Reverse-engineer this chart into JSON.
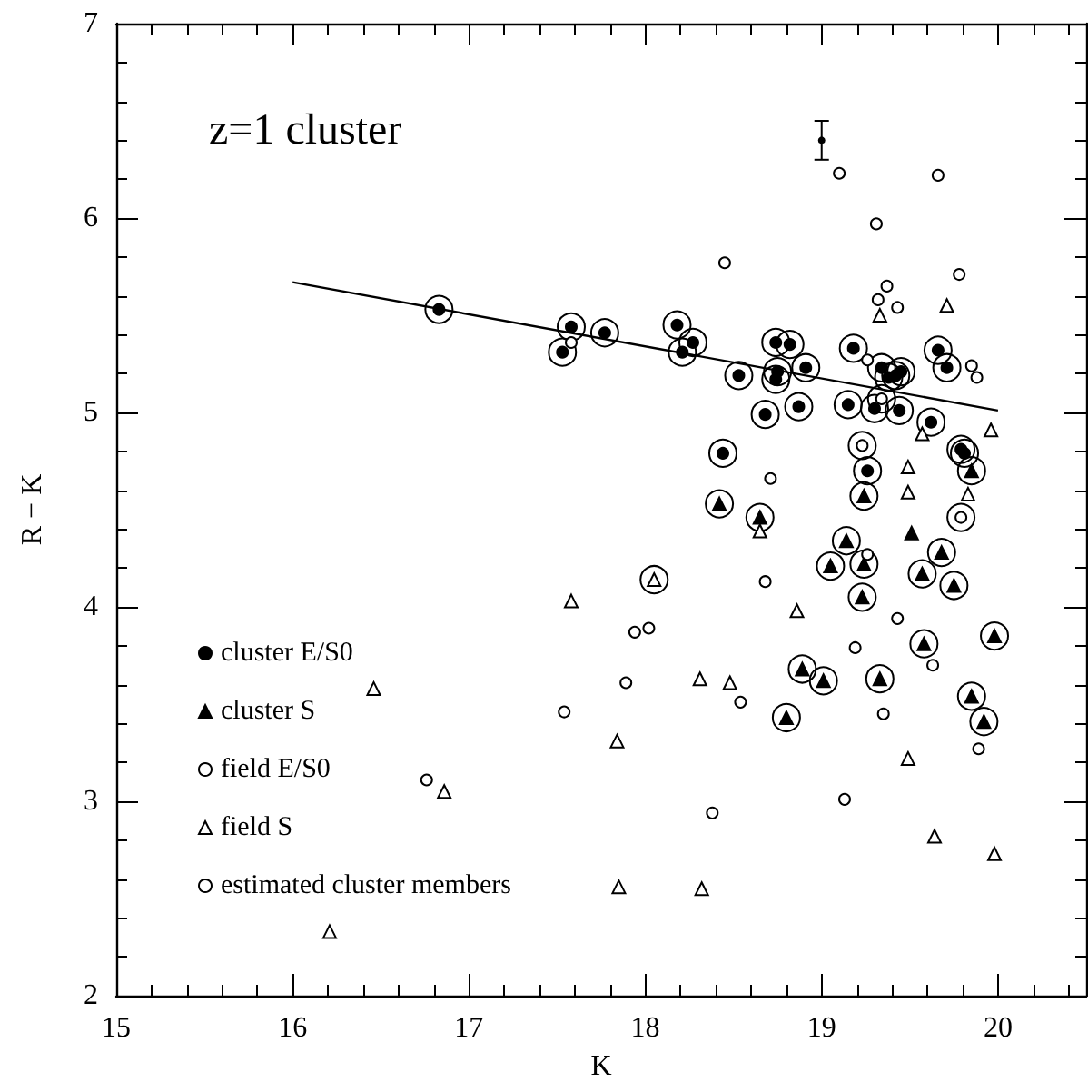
{
  "chart_data": {
    "type": "scatter",
    "title": "z=1 cluster",
    "xlabel": "K",
    "ylabel": "R − K",
    "xlim": [
      15,
      20.5
    ],
    "ylim": [
      2,
      7
    ],
    "xticks": [
      15,
      16,
      17,
      18,
      19,
      20
    ],
    "yticks": [
      2,
      3,
      4,
      5,
      6,
      7
    ],
    "grid": false,
    "legend": "left",
    "series": [
      {
        "name": "estimated cluster members",
        "type": "bubble",
        "marker": "circle",
        "color": "#000000",
        "sizes": [
          1,
          1,
          1,
          1,
          1,
          1,
          1,
          1,
          1,
          1,
          1,
          1,
          1,
          1,
          1,
          1,
          1,
          1,
          1,
          1,
          1,
          1,
          1,
          1,
          1,
          1,
          1,
          1,
          1,
          1,
          1,
          1,
          1,
          1,
          1,
          1,
          1,
          1,
          1,
          1,
          1,
          1,
          1,
          1,
          1,
          1,
          1,
          1,
          1,
          1,
          1,
          1,
          1
        ],
        "x": [
          16.83,
          17.58,
          17.53,
          17.77,
          18.18,
          18.27,
          18.21,
          18.44,
          18.74,
          18.82,
          19.18,
          19.66,
          18.53,
          18.75,
          18.74,
          18.91,
          19.34,
          19.38,
          19.45,
          19.42,
          19.71,
          18.68,
          18.87,
          19.15,
          19.3,
          19.44,
          19.62,
          19.79,
          19.81,
          19.26,
          18.42,
          18.65,
          19.24,
          19.85,
          19.14,
          19.68,
          19.05,
          19.24,
          19.57,
          19.75,
          19.23,
          19.58,
          19.98,
          18.89,
          19.01,
          19.33,
          18.8,
          19.85,
          19.92,
          19.34,
          19.23,
          19.79,
          18.05
        ],
        "values": [
          5.53,
          5.44,
          5.31,
          5.41,
          5.45,
          5.36,
          5.31,
          4.79,
          5.36,
          5.35,
          5.33,
          5.32,
          5.19,
          5.21,
          5.17,
          5.23,
          5.23,
          5.18,
          5.21,
          5.19,
          5.23,
          4.99,
          5.03,
          5.04,
          5.02,
          5.01,
          4.95,
          4.81,
          4.79,
          4.7,
          4.53,
          4.46,
          4.57,
          4.7,
          4.34,
          4.28,
          4.21,
          4.22,
          4.17,
          4.11,
          4.05,
          3.81,
          3.85,
          3.68,
          3.62,
          3.63,
          3.43,
          3.54,
          3.41,
          5.07,
          4.83,
          4.46,
          4.14
        ]
      },
      {
        "name": "cluster E/S0",
        "marker": "circle",
        "color": "#000000",
        "x": [
          16.83,
          17.58,
          17.53,
          17.77,
          18.18,
          18.27,
          18.21,
          18.44,
          18.74,
          18.82,
          19.18,
          19.66,
          18.53,
          18.75,
          18.74,
          18.91,
          19.34,
          19.38,
          19.45,
          19.42,
          19.71,
          18.68,
          18.87,
          19.15,
          19.3,
          19.44,
          19.62,
          19.79,
          19.81,
          19.26
        ],
        "values": [
          5.53,
          5.44,
          5.31,
          5.41,
          5.45,
          5.36,
          5.31,
          4.79,
          5.36,
          5.35,
          5.33,
          5.32,
          5.19,
          5.21,
          5.17,
          5.23,
          5.23,
          5.18,
          5.21,
          5.19,
          5.23,
          4.99,
          5.03,
          5.04,
          5.02,
          5.01,
          4.95,
          4.81,
          4.79,
          4.7
        ]
      },
      {
        "name": "cluster S",
        "marker": "triangle",
        "color": "#000000",
        "x": [
          18.42,
          18.65,
          19.24,
          19.85,
          19.14,
          19.68,
          19.05,
          19.24,
          19.57,
          19.75,
          19.23,
          19.58,
          19.98,
          18.89,
          19.01,
          19.33,
          18.8,
          19.85,
          19.92,
          19.51
        ],
        "values": [
          4.53,
          4.46,
          4.57,
          4.7,
          4.34,
          4.28,
          4.21,
          4.22,
          4.17,
          4.11,
          4.05,
          3.81,
          3.85,
          3.68,
          3.62,
          3.63,
          3.43,
          3.54,
          3.41,
          4.38
        ]
      },
      {
        "name": "field E/S0",
        "marker": "circle",
        "color": "#ffffff",
        "x": [
          17.58,
          18.45,
          19.1,
          19.66,
          19.31,
          19.78,
          19.37,
          19.32,
          19.43,
          19.26,
          19.85,
          19.88,
          19.34,
          19.23,
          19.79,
          18.71,
          19.26,
          18.68,
          19.43,
          19.19,
          19.63,
          18.54,
          19.35,
          19.89,
          19.13,
          18.38,
          17.94,
          18.02,
          17.89,
          17.54,
          16.76
        ],
        "values": [
          5.36,
          5.77,
          6.23,
          6.22,
          5.97,
          5.71,
          5.65,
          5.58,
          5.54,
          5.27,
          5.24,
          5.18,
          5.07,
          4.83,
          4.46,
          4.66,
          4.27,
          4.13,
          3.94,
          3.79,
          3.7,
          3.51,
          3.45,
          3.27,
          3.01,
          2.94,
          3.87,
          3.89,
          3.61,
          3.46,
          3.11
        ]
      },
      {
        "name": "field S",
        "marker": "triangle",
        "color": "#ffffff",
        "x": [
          19.33,
          19.71,
          19.57,
          19.96,
          19.49,
          19.49,
          19.83,
          18.65,
          18.86,
          18.31,
          18.48,
          19.49,
          19.64,
          19.98,
          18.32,
          17.58,
          17.84,
          16.46,
          16.86,
          17.85,
          16.21,
          18.05
        ],
        "values": [
          5.5,
          5.55,
          4.89,
          4.91,
          4.72,
          4.59,
          4.58,
          4.39,
          3.98,
          3.63,
          3.61,
          3.22,
          2.82,
          2.73,
          2.55,
          4.03,
          3.31,
          3.58,
          3.05,
          2.56,
          2.33,
          4.14
        ]
      },
      {
        "type": "line",
        "marker": "none",
        "color": "#000000",
        "x": [
          16,
          20
        ],
        "values": [
          5.67,
          5.01
        ]
      },
      {
        "marker": "circle",
        "color": "#000000",
        "x": [
          19.0
        ],
        "values": [
          6.4
        ],
        "errors": [
          0.1
        ]
      }
    ]
  }
}
